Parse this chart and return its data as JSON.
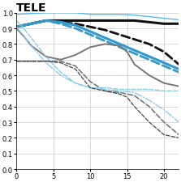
{
  "title": "TELE",
  "xlim": [
    0,
    22
  ],
  "ylim": [
    0,
    1.0
  ],
  "xticks": [
    0,
    5,
    10,
    15,
    20
  ],
  "yticks": [
    0,
    0.1,
    0.2,
    0.3,
    0.4,
    0.5,
    0.6,
    0.7,
    0.8,
    0.9,
    1
  ],
  "lines": [
    {
      "x": [
        0,
        2,
        4,
        6,
        8,
        10,
        12,
        14,
        16,
        18,
        20,
        22
      ],
      "y": [
        0.99,
        0.995,
        1.0,
        1.0,
        1.0,
        0.99,
        0.99,
        0.99,
        0.985,
        0.975,
        0.965,
        0.955
      ],
      "color": "#55bbee",
      "lw": 1.0,
      "ls": "-"
    },
    {
      "x": [
        0,
        2,
        4,
        6,
        8,
        10,
        12,
        14,
        16,
        18,
        20,
        22
      ],
      "y": [
        0.91,
        0.93,
        0.95,
        0.95,
        0.95,
        0.95,
        0.95,
        0.95,
        0.95,
        0.94,
        0.93,
        0.93
      ],
      "color": "#111111",
      "lw": 2.2,
      "ls": "-"
    },
    {
      "x": [
        0,
        2,
        4,
        6,
        8,
        10,
        12,
        14,
        16,
        18,
        20,
        22
      ],
      "y": [
        0.91,
        0.93,
        0.95,
        0.94,
        0.93,
        0.91,
        0.89,
        0.86,
        0.83,
        0.8,
        0.75,
        0.67
      ],
      "color": "#111111",
      "lw": 2.0,
      "ls": "--"
    },
    {
      "x": [
        0,
        2,
        4,
        6,
        8,
        10,
        12,
        14,
        16,
        18,
        20,
        22
      ],
      "y": [
        0.91,
        0.93,
        0.95,
        0.94,
        0.92,
        0.88,
        0.84,
        0.8,
        0.76,
        0.72,
        0.68,
        0.64
      ],
      "color": "#3399cc",
      "lw": 2.2,
      "ls": "-"
    },
    {
      "x": [
        0,
        2,
        4,
        6,
        8,
        10,
        12,
        14,
        16,
        18,
        20,
        22
      ],
      "y": [
        0.91,
        0.93,
        0.95,
        0.93,
        0.9,
        0.86,
        0.82,
        0.78,
        0.74,
        0.7,
        0.66,
        0.62
      ],
      "color": "#3399cc",
      "lw": 2.0,
      "ls": "--"
    },
    {
      "x": [
        0,
        1,
        2,
        4,
        6,
        8,
        10,
        12,
        14,
        15,
        16,
        18,
        20,
        22
      ],
      "y": [
        0.9,
        0.85,
        0.79,
        0.72,
        0.7,
        0.73,
        0.78,
        0.8,
        0.79,
        0.75,
        0.67,
        0.6,
        0.55,
        0.53
      ],
      "color": "#777777",
      "lw": 1.4,
      "ls": "-"
    },
    {
      "x": [
        0,
        2,
        4,
        6,
        8,
        10,
        12,
        14,
        16,
        18,
        20,
        22
      ],
      "y": [
        0.69,
        0.69,
        0.69,
        0.69,
        0.66,
        0.56,
        0.5,
        0.49,
        0.47,
        0.4,
        0.3,
        0.22
      ],
      "color": "#777777",
      "lw": 1.2,
      "ls": "--"
    },
    {
      "x": [
        0,
        1,
        2,
        4,
        6,
        8,
        10,
        12,
        14,
        16,
        18,
        20,
        22
      ],
      "y": [
        0.95,
        0.9,
        0.84,
        0.72,
        0.62,
        0.55,
        0.52,
        0.52,
        0.51,
        0.51,
        0.51,
        0.5,
        0.5
      ],
      "color": "#88ccee",
      "lw": 1.0,
      "ls": "--"
    },
    {
      "x": [
        0,
        1,
        2,
        4,
        6,
        8,
        10,
        12,
        14,
        16,
        18,
        20,
        22
      ],
      "y": [
        0.91,
        0.85,
        0.79,
        0.68,
        0.6,
        0.55,
        0.52,
        0.51,
        0.5,
        0.49,
        0.44,
        0.38,
        0.3
      ],
      "color": "#88ccee",
      "lw": 1.0,
      "ls": "-."
    },
    {
      "x": [
        0,
        2,
        4,
        6,
        8,
        10,
        12,
        14,
        15,
        16,
        18,
        20,
        22
      ],
      "y": [
        0.69,
        0.69,
        0.69,
        0.68,
        0.64,
        0.52,
        0.5,
        0.48,
        0.46,
        0.4,
        0.3,
        0.22,
        0.2
      ],
      "color": "#444444",
      "lw": 0.9,
      "ls": "--"
    }
  ],
  "background_color": "#ffffff",
  "grid_color": "#cccccc"
}
